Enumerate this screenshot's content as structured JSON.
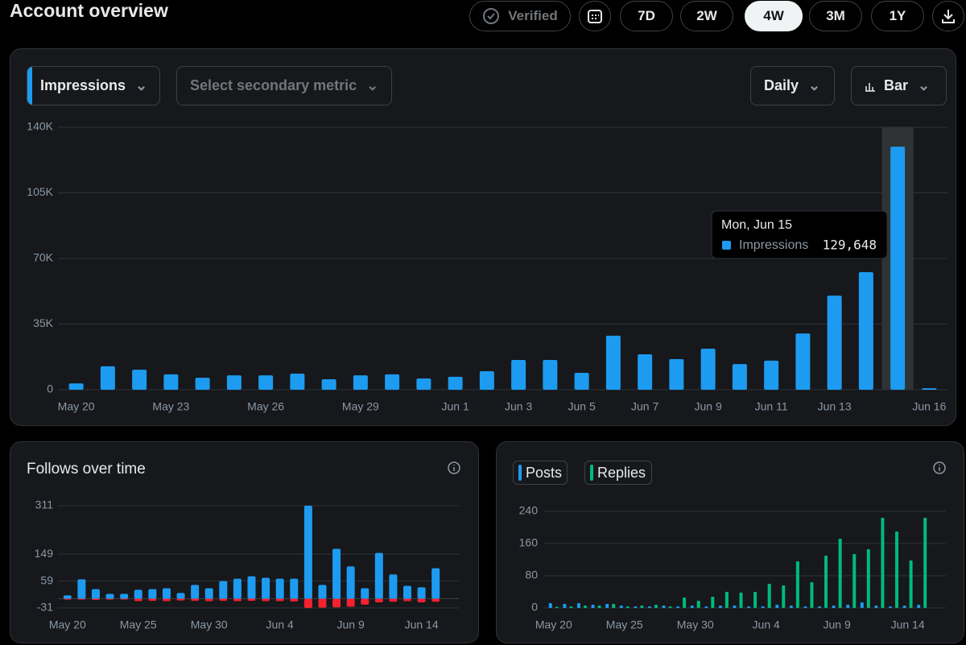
{
  "header": {
    "title": "Account overview",
    "verified": "Verified",
    "ranges": [
      "7D",
      "2W",
      "4W",
      "3M",
      "1Y"
    ],
    "active_range": 2
  },
  "controls": {
    "secondary_metric": "Select secondary metric",
    "interval": "Daily",
    "chart_style": "Bar"
  },
  "chart_data": [
    {
      "type": "bar",
      "barmode": "group",
      "categories": [
        "May 20",
        null,
        null,
        "May 23",
        null,
        null,
        "May 26",
        null,
        null,
        "May 29",
        null,
        null,
        "Jun 1",
        null,
        "Jun 3",
        null,
        "Jun 5",
        null,
        "Jun 7",
        null,
        "Jun 9",
        null,
        "Jun 11",
        null,
        "Jun 13",
        null,
        null,
        "Jun 16"
      ],
      "series": [
        {
          "name": "Impressions",
          "color": "#1d9bf0",
          "values": [
            3400,
            12500,
            10700,
            8200,
            6400,
            7700,
            7700,
            8600,
            5600,
            7700,
            8200,
            6000,
            6900,
            9900,
            15900,
            15900,
            9000,
            28800,
            18900,
            16300,
            21900,
            13700,
            15500,
            30000,
            50200,
            62700,
            129648,
            800
          ]
        }
      ],
      "ylim": [
        0,
        140000
      ],
      "yticks": [
        0,
        {
          "value": 35000,
          "label": "35K"
        },
        {
          "value": 70000,
          "label": "70K"
        },
        {
          "value": 105000,
          "label": "105K"
        },
        {
          "value": 140000,
          "label": "140K"
        }
      ],
      "grid": true,
      "tooltip": {
        "index": 26,
        "title": "Mon, Jun 15",
        "value_label": "129,648"
      }
    },
    {
      "type": "bar",
      "barmode": "overlay",
      "title": "Follows over time",
      "categories": [
        "May 20",
        null,
        null,
        null,
        null,
        "May 25",
        null,
        null,
        null,
        null,
        "May 30",
        null,
        null,
        null,
        null,
        "Jun 4",
        null,
        null,
        null,
        null,
        "Jun 9",
        null,
        null,
        null,
        null,
        "Jun 14",
        null
      ],
      "series": [
        {
          "color": "#1d9bf0",
          "values": [
            11,
            65,
            32,
            16,
            16,
            30,
            32,
            35,
            19,
            46,
            35,
            59,
            67,
            75,
            70,
            67,
            67,
            311,
            46,
            167,
            108,
            35,
            153,
            81,
            43,
            38,
            102
          ]
        },
        {
          "color": "#f4212e",
          "values": [
            -3,
            -3,
            -4,
            -3,
            -3,
            -8,
            -7,
            -8,
            -6,
            -7,
            -8,
            -7,
            -8,
            -7,
            -8,
            -8,
            -9,
            -31,
            -30,
            -29,
            -27,
            -20,
            -12,
            -10,
            -8,
            -12,
            -10
          ]
        }
      ],
      "ylim": [
        -31,
        311
      ],
      "yticks": [
        -31,
        59,
        149,
        311
      ],
      "grid": true
    },
    {
      "type": "bar",
      "barmode": "group",
      "categories": [
        "May 20",
        null,
        null,
        null,
        null,
        "May 25",
        null,
        null,
        null,
        null,
        "May 30",
        null,
        null,
        null,
        null,
        "Jun 4",
        null,
        null,
        null,
        null,
        "Jun 9",
        null,
        null,
        null,
        null,
        "Jun 14",
        null
      ],
      "series": [
        {
          "name": "Posts",
          "color": "#1d9bf0",
          "values": [
            12,
            10,
            12,
            8,
            10,
            6,
            4,
            4,
            6,
            4,
            6,
            4,
            6,
            6,
            4,
            4,
            8,
            6,
            4,
            4,
            6,
            8,
            14,
            6,
            4,
            6,
            8
          ]
        },
        {
          "name": "Replies",
          "color": "#00ba7c",
          "values": [
            3,
            4,
            6,
            6,
            10,
            4,
            6,
            8,
            4,
            26,
            18,
            28,
            40,
            38,
            40,
            60,
            56,
            116,
            64,
            130,
            172,
            134,
            146,
            224,
            190,
            118,
            224
          ]
        }
      ],
      "ylim": [
        0,
        240
      ],
      "yticks": [
        0,
        80,
        160,
        240
      ],
      "grid": true,
      "legend": true
    }
  ]
}
